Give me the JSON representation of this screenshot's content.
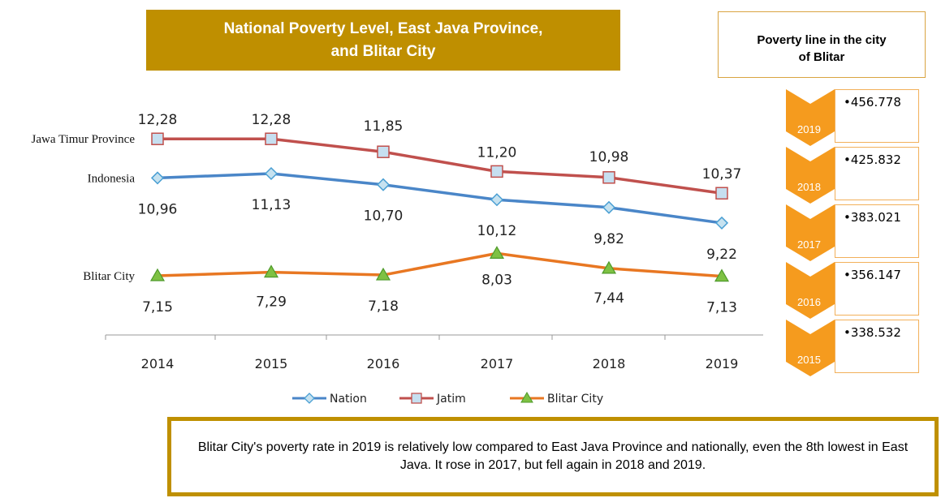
{
  "title": {
    "line1": "National Poverty Level, East Java Province,",
    "line2": "and Blitar City"
  },
  "poverty_line": {
    "title_line1": "Poverty line in the city",
    "title_line2": "of Blitar",
    "items": [
      {
        "year": "2019",
        "value": "•456.778"
      },
      {
        "year": "2018",
        "value": "•425.832"
      },
      {
        "year": "2017",
        "value": "•383.021"
      },
      {
        "year": "2016",
        "value": "•356.147"
      },
      {
        "year": "2015",
        "value": "•338.532"
      }
    ],
    "accent": "#f59b1e"
  },
  "note": "Blitar City's poverty rate in 2019 is relatively low compared to East Java Province and nationally, even the 8th lowest in East Java. It rose in 2017, but fell again in 2018 and 2019.",
  "chart_data": {
    "type": "line",
    "categories": [
      "2014",
      "2015",
      "2016",
      "2017",
      "2018",
      "2019"
    ],
    "series": [
      {
        "name": "Nation",
        "label": "Indonesia",
        "values": [
          10.96,
          11.13,
          10.7,
          10.12,
          9.82,
          9.22
        ],
        "data_labels": [
          "10,96",
          "11,13",
          "10,70",
          "10,12",
          "9,82",
          "9,22"
        ],
        "color": "#4a86c8",
        "marker": "diamond"
      },
      {
        "name": "Jatim",
        "label": "Jawa Timur Province",
        "values": [
          12.28,
          12.28,
          11.85,
          11.2,
          10.98,
          10.37
        ],
        "data_labels": [
          "12,28",
          "12,28",
          "11,85",
          "11,20",
          "10,98",
          "10,37"
        ],
        "color": "#c0504d",
        "marker": "square"
      },
      {
        "name": "Blitar City",
        "label": "Blitar City",
        "values": [
          7.15,
          7.29,
          7.18,
          8.03,
          7.44,
          7.13
        ],
        "data_labels": [
          "7,15",
          "7,29",
          "7,18",
          "8,03",
          "7,44",
          "7,13"
        ],
        "color": "#e87722",
        "marker": "triangle"
      }
    ],
    "legend": "bottom",
    "grid": false
  }
}
